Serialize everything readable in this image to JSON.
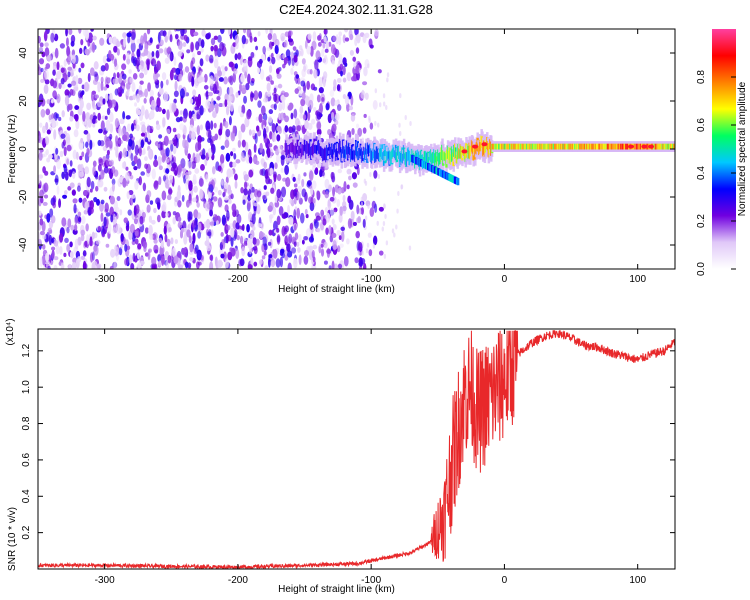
{
  "title": "C2E4.2024.302.11.31.G28",
  "chart_data": [
    {
      "type": "heatmap",
      "xlabel": "Height of straight line (km)",
      "ylabel": "Frequency (Hz)",
      "xlim": [
        -350,
        128
      ],
      "ylim": [
        -50,
        50
      ],
      "xticks": [
        -300,
        -200,
        -100,
        0,
        100
      ],
      "yticks": [
        -40,
        -20,
        0,
        20,
        40
      ],
      "colorbar": {
        "label": "Normalized spectral amplitude",
        "range": [
          0,
          1
        ],
        "ticks": [
          0.0,
          0.2,
          0.4,
          0.6,
          0.8
        ],
        "colors": [
          "#ffffff",
          "#e0c8f8",
          "#7000e0",
          "#0000ff",
          "#00c8ff",
          "#00ff60",
          "#ffff00",
          "#ff8000",
          "#ff0000",
          "#ff40a0"
        ]
      },
      "noise_region": {
        "x": [
          -350,
          -110
        ],
        "frequency": [
          -50,
          50
        ],
        "amplitude_range": [
          0.05,
          0.3
        ]
      },
      "signal_trace": [
        {
          "x": -165,
          "freq": 0,
          "amp": 0.25
        },
        {
          "x": -120,
          "freq": -1,
          "amp": 0.35
        },
        {
          "x": -90,
          "freq": -2,
          "amp": 0.45
        },
        {
          "x": -60,
          "freq": -4,
          "amp": 0.5
        },
        {
          "x": -40,
          "freq": -3,
          "amp": 0.65
        },
        {
          "x": -20,
          "freq": 1,
          "amp": 0.75
        },
        {
          "x": 0,
          "freq": 1,
          "amp": 0.7
        },
        {
          "x": 50,
          "freq": 1,
          "amp": 0.72
        },
        {
          "x": 100,
          "freq": 1,
          "amp": 0.85
        },
        {
          "x": 128,
          "freq": 1,
          "amp": 0.7
        }
      ]
    },
    {
      "type": "line",
      "xlabel": "Height of straight line (km)",
      "ylabel": "SNR (10 * v/v)",
      "yscale_label": "(x10⁴)",
      "xlim": [
        -350,
        128
      ],
      "ylim": [
        0,
        1.32
      ],
      "xticks": [
        -300,
        -200,
        -100,
        0,
        100
      ],
      "yticks": [
        0.2,
        0.4,
        0.6,
        0.8,
        1.0,
        1.2
      ],
      "series": [
        {
          "color": "#e8282a",
          "x": [
            -350,
            -300,
            -250,
            -200,
            -150,
            -110,
            -90,
            -70,
            -55,
            -45,
            -40,
            -35,
            -30,
            -25,
            -20,
            -15,
            -10,
            -5,
            0,
            5,
            10,
            20,
            30,
            40,
            50,
            60,
            70,
            80,
            90,
            100,
            110,
            120,
            128
          ],
          "y": [
            0.02,
            0.02,
            0.015,
            0.01,
            0.02,
            0.03,
            0.06,
            0.09,
            0.15,
            0.3,
            0.55,
            0.75,
            0.95,
            1.0,
            0.85,
            0.9,
            0.95,
            1.0,
            1.05,
            1.12,
            1.18,
            1.24,
            1.28,
            1.3,
            1.27,
            1.23,
            1.22,
            1.19,
            1.17,
            1.15,
            1.18,
            1.2,
            1.25
          ]
        }
      ]
    }
  ]
}
